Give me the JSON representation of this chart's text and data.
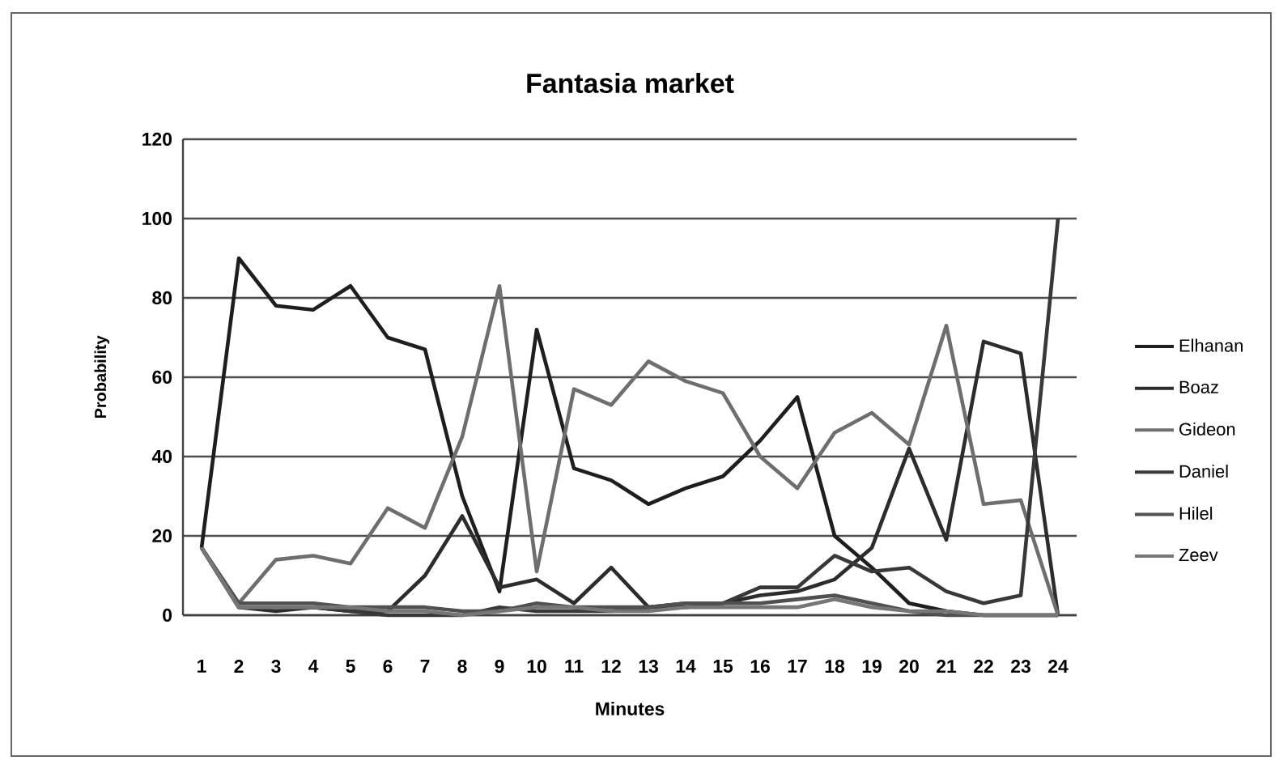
{
  "chart_data": {
    "type": "line",
    "title": "Fantasia market",
    "xlabel": "Minutes",
    "ylabel": "Probability",
    "categories": [
      "1",
      "2",
      "3",
      "4",
      "5",
      "6",
      "7",
      "8",
      "9",
      "10",
      "11",
      "12",
      "13",
      "14",
      "15",
      "16",
      "17",
      "18",
      "19",
      "20",
      "21",
      "22",
      "23",
      "24"
    ],
    "series": [
      {
        "name": "Elhanan",
        "color": "#1e1e1e",
        "values": [
          17,
          90,
          78,
          77,
          83,
          70,
          67,
          30,
          6,
          72,
          37,
          34,
          28,
          32,
          35,
          44,
          55,
          20,
          12,
          3,
          1,
          0,
          0,
          0
        ]
      },
      {
        "name": "Boaz",
        "color": "#2c2c2c",
        "values": [
          17,
          2,
          1,
          2,
          1,
          1,
          10,
          25,
          7,
          9,
          3,
          12,
          2,
          2,
          3,
          5,
          6,
          9,
          17,
          42,
          19,
          69,
          66,
          0
        ]
      },
      {
        "name": "Gideon",
        "color": "#6e6e6e",
        "values": [
          17,
          3,
          14,
          15,
          13,
          27,
          22,
          45,
          83,
          11,
          57,
          53,
          64,
          59,
          56,
          40,
          32,
          46,
          51,
          43,
          73,
          28,
          29,
          0
        ]
      },
      {
        "name": "Daniel",
        "color": "#383838",
        "values": [
          17,
          2,
          2,
          2,
          1,
          0,
          0,
          0,
          2,
          1,
          1,
          1,
          2,
          3,
          3,
          7,
          7,
          15,
          11,
          12,
          6,
          3,
          5,
          100
        ]
      },
      {
        "name": "Hilel",
        "color": "#505050",
        "values": [
          17,
          3,
          3,
          3,
          2,
          2,
          2,
          1,
          1,
          3,
          2,
          2,
          2,
          3,
          3,
          3,
          4,
          5,
          3,
          1,
          0,
          0,
          0,
          0
        ]
      },
      {
        "name": "Zeev",
        "color": "#767676",
        "values": [
          17,
          2,
          2,
          2,
          2,
          1,
          1,
          0,
          1,
          2,
          2,
          1,
          1,
          2,
          2,
          2,
          2,
          4,
          2,
          1,
          1,
          0,
          0,
          0
        ]
      }
    ],
    "ylim": [
      0,
      120
    ],
    "yticks": [
      0,
      20,
      40,
      60,
      80,
      100,
      120
    ],
    "grid": "y",
    "legend": "right",
    "marker": "none",
    "line_style": "solid"
  }
}
